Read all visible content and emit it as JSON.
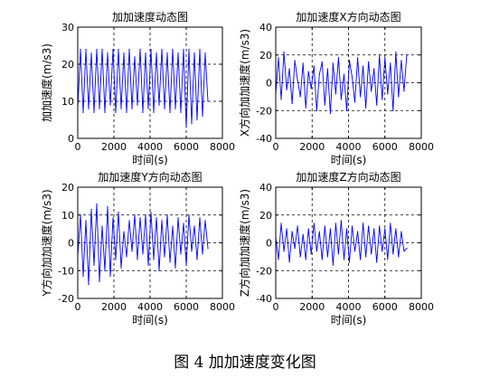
{
  "figure": {
    "caption": "图 4  加加速度变化图"
  },
  "chart_data": [
    {
      "type": "line",
      "title": "加加速度动态图",
      "xlabel": "时间(s)",
      "ylabel": "加加速度(m/s3)",
      "xlim": [
        0,
        8000
      ],
      "ylim": [
        0,
        30
      ],
      "xticks": [
        0,
        2000,
        4000,
        6000,
        8000
      ],
      "yticks": [
        0,
        10,
        20,
        30
      ],
      "grid": true,
      "line_color": "#0000ff",
      "data_x_range": [
        0,
        7200
      ],
      "series": [
        {
          "x": [
            0,
            150,
            300,
            450,
            600,
            750,
            900,
            1050,
            1200,
            1350,
            1500,
            1650,
            1800,
            1950,
            2100,
            2250,
            2400,
            2550,
            2700,
            2850,
            3000,
            3150,
            3300,
            3450,
            3600,
            3750,
            3900,
            4050,
            4200,
            4350,
            4500,
            4650,
            4800,
            4950,
            5100,
            5250,
            5400,
            5550,
            5700,
            5850,
            6000,
            6150,
            6300,
            6450,
            6600,
            6750,
            6900,
            7050,
            7200
          ],
          "values": [
            8,
            24,
            7,
            24,
            8,
            23,
            7,
            24,
            8,
            24,
            7,
            23,
            9,
            24,
            7,
            24,
            8,
            23,
            7,
            24,
            8,
            22,
            9,
            24,
            7,
            23,
            8,
            24,
            7,
            23,
            9,
            24,
            8,
            23,
            7,
            24,
            8,
            23,
            7,
            24,
            3,
            24,
            4,
            23,
            5,
            24,
            6,
            23,
            10
          ]
        }
      ]
    },
    {
      "type": "line",
      "title": "加加速度X方向动态图",
      "xlabel": "时间(s)",
      "ylabel": "X方向加加速度(m/s3)",
      "xlim": [
        0,
        8000
      ],
      "ylim": [
        -40,
        40
      ],
      "xticks": [
        0,
        2000,
        4000,
        6000,
        8000
      ],
      "yticks": [
        -40,
        -20,
        0,
        20,
        40
      ],
      "grid": true,
      "line_color": "#0000ff",
      "data_x_range": [
        0,
        7200
      ],
      "series": [
        {
          "x": [
            0,
            150,
            300,
            450,
            600,
            750,
            900,
            1050,
            1200,
            1350,
            1500,
            1650,
            1800,
            1950,
            2100,
            2250,
            2400,
            2550,
            2700,
            2850,
            3000,
            3150,
            3300,
            3450,
            3600,
            3750,
            3900,
            4050,
            4200,
            4350,
            4500,
            4650,
            4800,
            4950,
            5100,
            5250,
            5400,
            5550,
            5700,
            5850,
            6000,
            6150,
            6300,
            6450,
            6600,
            6750,
            6900,
            7050,
            7200
          ],
          "values": [
            -8,
            18,
            -12,
            22,
            -5,
            10,
            -15,
            16,
            2,
            -10,
            14,
            -18,
            8,
            -4,
            12,
            -20,
            6,
            15,
            -16,
            10,
            -22,
            14,
            -8,
            18,
            -12,
            6,
            -20,
            16,
            4,
            -14,
            18,
            -10,
            12,
            -18,
            15,
            -6,
            10,
            -16,
            20,
            -12,
            18,
            -8,
            14,
            -20,
            22,
            -10,
            16,
            -6,
            20
          ]
        }
      ]
    },
    {
      "type": "line",
      "title": "加加速度Y方向动态图",
      "xlabel": "时间(s)",
      "ylabel": "Y方向加加速度(m/s3)",
      "xlim": [
        0,
        8000
      ],
      "ylim": [
        -20,
        20
      ],
      "xticks": [
        0,
        2000,
        4000,
        6000,
        8000
      ],
      "yticks": [
        -20,
        -10,
        0,
        10,
        20
      ],
      "grid": true,
      "line_color": "#0000ff",
      "data_x_range": [
        0,
        7200
      ],
      "series": [
        {
          "x": [
            0,
            150,
            300,
            450,
            600,
            750,
            900,
            1050,
            1200,
            1350,
            1500,
            1650,
            1800,
            1950,
            2100,
            2250,
            2400,
            2550,
            2700,
            2850,
            3000,
            3150,
            3300,
            3450,
            3600,
            3750,
            3900,
            4050,
            4200,
            4350,
            4500,
            4650,
            4800,
            4950,
            5100,
            5250,
            5400,
            5550,
            5700,
            5850,
            6000,
            6150,
            6300,
            6450,
            6600,
            6750,
            6900,
            7050,
            7200
          ],
          "values": [
            -5,
            10,
            -12,
            8,
            -15,
            12,
            -8,
            14,
            -14,
            6,
            -10,
            13,
            -12,
            9,
            -6,
            11,
            -9,
            4,
            -5,
            8,
            -3,
            10,
            -6,
            9,
            -4,
            10,
            -8,
            11,
            -6,
            9,
            -10,
            8,
            -5,
            10,
            -7,
            6,
            -9,
            9,
            -4,
            7,
            -8,
            10,
            -3,
            6,
            -6,
            9,
            -4,
            8,
            -2
          ]
        }
      ]
    },
    {
      "type": "line",
      "title": "加加速度Z方向动态图",
      "xlabel": "时间(s)",
      "ylabel": "Z方向加加速度(m/s3)",
      "xlim": [
        0,
        8000
      ],
      "ylim": [
        -40,
        40
      ],
      "xticks": [
        0,
        2000,
        4000,
        6000,
        8000
      ],
      "yticks": [
        -40,
        -20,
        0,
        20,
        40
      ],
      "grid": true,
      "line_color": "#0000ff",
      "data_x_range": [
        0,
        7200
      ],
      "series": [
        {
          "x": [
            0,
            150,
            300,
            450,
            600,
            750,
            900,
            1050,
            1200,
            1350,
            1500,
            1650,
            1800,
            1950,
            2100,
            2250,
            2400,
            2550,
            2700,
            2850,
            3000,
            3150,
            3300,
            3450,
            3600,
            3750,
            3900,
            4050,
            4200,
            4350,
            4500,
            4650,
            4800,
            4950,
            5100,
            5250,
            5400,
            5550,
            5700,
            5850,
            6000,
            6150,
            6300,
            6450,
            6600,
            6750,
            6900,
            7050,
            7200
          ],
          "values": [
            4,
            -12,
            14,
            -6,
            10,
            -14,
            8,
            -4,
            12,
            -10,
            6,
            -12,
            10,
            -8,
            14,
            -6,
            8,
            -12,
            12,
            -10,
            10,
            -16,
            14,
            -8,
            16,
            -12,
            10,
            -14,
            12,
            -6,
            8,
            -12,
            14,
            -10,
            12,
            -8,
            10,
            -14,
            12,
            -6,
            10,
            -12,
            14,
            -8,
            10,
            -10,
            8,
            -6,
            -4
          ]
        }
      ]
    }
  ]
}
